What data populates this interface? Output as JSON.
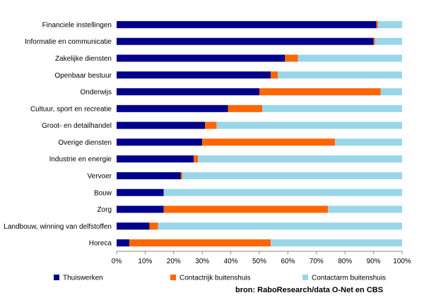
{
  "chart_data": {
    "type": "bar",
    "orientation": "horizontal",
    "stacked": true,
    "categories": [
      "Financiele instellingen",
      "Informatie en communicatie",
      "Zakelijke diensten",
      "Openbaar bestuur",
      "Onderwijs",
      "Cultuur, sport en recreatie",
      "Groot- en detailhandel",
      "Overige diensten",
      "Industrie en energie",
      "Vervoer",
      "Bouw",
      "Zorg",
      "Landbouw, winning van delfstoffen",
      "Horeca"
    ],
    "series": [
      {
        "name": "Thuiswerken",
        "values": [
          91,
          90,
          59,
          54,
          50,
          39,
          31,
          30,
          27,
          22.5,
          16.5,
          16.5,
          11.5,
          4.5
        ],
        "color": "#00008b"
      },
      {
        "name": "Contactrijk buitenshuis",
        "values": [
          0.5,
          0.5,
          4.5,
          2.5,
          42.5,
          12,
          4,
          46.5,
          1.5,
          0.5,
          0,
          57.5,
          3,
          49.5
        ],
        "color": "#ff6600"
      },
      {
        "name": "Contactarm buitenshuis",
        "values": [
          8.5,
          9.5,
          36.5,
          43.5,
          7.5,
          49,
          65,
          23.5,
          71.5,
          77,
          83.5,
          26,
          85.5,
          46
        ],
        "color": "#99d6e8"
      }
    ],
    "xlim": [
      0,
      100
    ],
    "x_ticks": [
      "0%",
      "10%",
      "20%",
      "30%",
      "40%",
      "50%",
      "60%",
      "70%",
      "80%",
      "90%",
      "100%"
    ],
    "gridlines": false,
    "legend_position": "bottom",
    "source": "bron: RaboResearch/data O-Net en CBS"
  }
}
